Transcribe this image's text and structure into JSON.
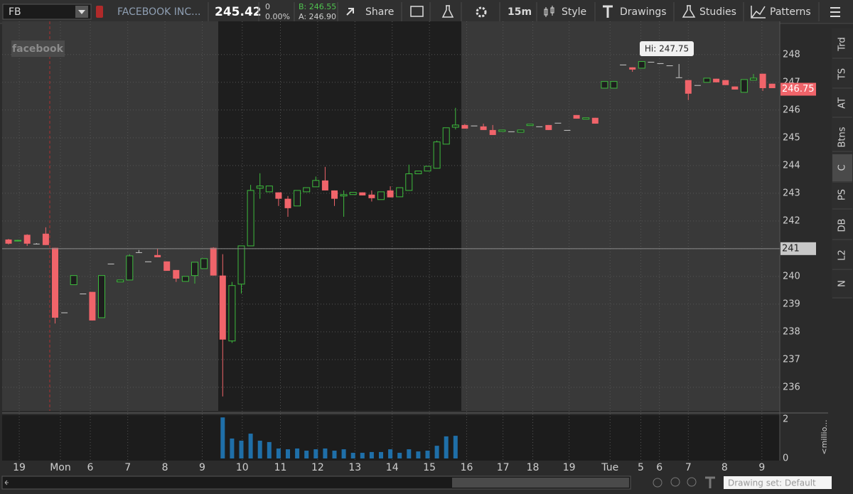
{
  "toolbar": {
    "symbol": "FB",
    "company": "FACEBOOK INC...",
    "last": "245.42",
    "change": "0",
    "change_pct": "0.00%",
    "bid": "B: 246.55",
    "ask": "A: 246.90",
    "share": "Share",
    "interval": "15m",
    "style": "Style",
    "drawings": "Drawings",
    "studies": "Studies",
    "patterns": "Patterns"
  },
  "sidebar": {
    "tabs": [
      "Trd",
      "TS",
      "AT",
      "Btns",
      "C",
      "PS",
      "DB",
      "L2",
      "N"
    ]
  },
  "footer": {
    "drawing_set": "Drawing set: Default"
  },
  "chart_data": {
    "type": "candlestick",
    "watermark": "facebook",
    "high_label": "Hi: 247.75",
    "open": [
      241.33,
      241.28,
      241.5,
      241.18,
      241.54,
      241.03,
      238.7,
      239.7,
      239.38,
      239.44,
      238.51,
      240.46,
      239.8,
      239.87,
      240.87,
      240.54,
      240.77,
      240.54,
      240.23,
      239.82,
      240.03,
      240.28,
      241.03,
      240.03,
      237.67,
      239.72,
      241.1,
      243.18,
      243.05,
      243.03,
      242.8,
      242.54,
      243.05,
      243.23,
      243.46,
      243.1,
      242.9,
      242.95,
      243.03,
      242.95,
      242.77,
      243.1,
      242.87,
      243.1,
      243.7,
      243.8,
      243.9,
      244.77,
      245.38,
      245.46,
      245.44,
      245.41,
      245.28,
      245.23,
      245.23,
      245.2,
      245.44,
      245.41,
      245.46,
      245.54,
      245.28,
      245.82,
      245.67,
      245.72,
      246.79,
      246.79,
      247.64,
      247.54,
      247.51,
      247.74,
      247.69,
      247.61,
      247.18,
      247.08,
      246.9,
      247.0,
      247.13,
      247.08,
      246.85,
      246.64,
      247.08,
      247.31,
      246.95
    ],
    "high": [
      241.35,
      241.32,
      241.52,
      241.2,
      241.77,
      241.03,
      238.7,
      240.03,
      239.38,
      239.44,
      240.03,
      240.46,
      239.87,
      240.8,
      240.95,
      240.54,
      241.0,
      240.54,
      240.23,
      240.0,
      240.51,
      240.64,
      241.05,
      240.8,
      239.8,
      241.1,
      243.3,
      243.72,
      243.26,
      243.03,
      242.9,
      243.1,
      243.2,
      243.6,
      243.95,
      243.1,
      243.1,
      243.03,
      243.03,
      243.1,
      243.05,
      243.25,
      243.2,
      244.03,
      243.8,
      243.97,
      244.9,
      245.36,
      246.08,
      245.5,
      245.44,
      245.51,
      245.46,
      245.28,
      245.23,
      245.28,
      245.49,
      245.41,
      245.46,
      245.54,
      245.28,
      245.82,
      245.72,
      245.72,
      247.03,
      247.03,
      247.64,
      247.54,
      247.75,
      247.74,
      247.69,
      247.61,
      247.66,
      247.08,
      246.9,
      247.15,
      247.13,
      247.08,
      246.85,
      247.1,
      247.3,
      247.31,
      246.95
    ],
    "low": [
      241.15,
      241.26,
      241.1,
      241.16,
      241.13,
      238.3,
      238.7,
      239.7,
      239.38,
      238.41,
      238.51,
      240.46,
      239.8,
      239.87,
      240.87,
      240.54,
      240.69,
      240.2,
      239.8,
      239.82,
      239.74,
      240.28,
      240.03,
      235.67,
      237.6,
      239.38,
      241.1,
      242.8,
      243.05,
      242.54,
      242.15,
      242.54,
      243.05,
      243.23,
      243.1,
      242.54,
      242.15,
      242.95,
      242.92,
      242.7,
      242.77,
      242.85,
      242.87,
      243.1,
      243.7,
      243.8,
      243.9,
      244.77,
      245.3,
      245.33,
      245.44,
      245.28,
      245.1,
      245.23,
      245.23,
      245.2,
      245.44,
      245.41,
      245.28,
      245.54,
      245.28,
      245.69,
      245.67,
      245.51,
      246.79,
      246.79,
      247.64,
      247.38,
      247.51,
      247.74,
      247.69,
      247.61,
      247.18,
      246.36,
      246.9,
      247.0,
      247.0,
      246.9,
      246.74,
      246.64,
      247.08,
      246.69,
      246.79
    ],
    "close": [
      241.18,
      241.3,
      241.18,
      241.18,
      241.13,
      238.51,
      238.7,
      240.03,
      239.38,
      238.41,
      240.03,
      240.46,
      239.87,
      240.74,
      240.87,
      240.54,
      240.69,
      240.2,
      239.92,
      240.0,
      240.51,
      240.64,
      240.03,
      237.72,
      239.67,
      241.1,
      243.1,
      243.26,
      243.26,
      242.8,
      242.46,
      243.1,
      243.2,
      243.46,
      243.1,
      242.8,
      242.95,
      243.03,
      242.92,
      242.82,
      243.05,
      242.85,
      243.2,
      243.7,
      243.8,
      243.97,
      244.85,
      245.36,
      245.46,
      245.33,
      245.44,
      245.28,
      245.1,
      245.28,
      245.23,
      245.28,
      245.49,
      245.41,
      245.28,
      245.54,
      245.28,
      245.69,
      245.72,
      245.51,
      247.03,
      247.03,
      247.64,
      247.46,
      247.75,
      247.74,
      247.69,
      247.61,
      247.18,
      246.59,
      246.9,
      247.15,
      247.0,
      246.9,
      246.74,
      247.1,
      247.15,
      246.79,
      246.79
    ],
    "up_color": "#3dbb3d",
    "down_color": "#f0646a",
    "flat_color": "#c8c8c8",
    "ylim": [
      235.15,
      249.2
    ],
    "yticks": [
      236,
      237,
      238,
      239,
      240,
      241,
      242,
      243,
      244,
      245,
      246,
      247,
      248
    ],
    "grid": true,
    "xticks": [
      {
        "value": 1.15,
        "label": "19"
      },
      {
        "value": 5.57,
        "label": "Mon"
      },
      {
        "value": 8.78,
        "label": "6"
      },
      {
        "value": 12.8,
        "label": "7"
      },
      {
        "value": 16.8,
        "label": "8"
      },
      {
        "value": 20.8,
        "label": "9"
      },
      {
        "value": 25.1,
        "label": "10"
      },
      {
        "value": 29.2,
        "label": "11"
      },
      {
        "value": 33.2,
        "label": "12"
      },
      {
        "value": 37.2,
        "label": "13"
      },
      {
        "value": 41.2,
        "label": "14"
      },
      {
        "value": 45.2,
        "label": "15"
      },
      {
        "value": 49.2,
        "label": "16"
      },
      {
        "value": 53.1,
        "label": "17"
      },
      {
        "value": 56.3,
        "label": "18"
      },
      {
        "value": 60.2,
        "label": "19"
      },
      {
        "value": 64.6,
        "label": "Tue"
      },
      {
        "value": 67.9,
        "label": "5"
      },
      {
        "value": 69.9,
        "label": "6"
      },
      {
        "value": 73.0,
        "label": "7"
      },
      {
        "value": 76.9,
        "label": "8"
      },
      {
        "value": 80.9,
        "label": "9"
      }
    ],
    "price_tags": [
      {
        "value": 246.75,
        "color": "#f0646a",
        "line": false
      },
      {
        "value": 241,
        "color": "#c8c8c8",
        "line": true
      }
    ],
    "volume": {
      "label": "<millio...",
      "color": "#1f6fa8",
      "ylim": [
        0,
        2
      ],
      "yticks": [
        0,
        2
      ],
      "values": [
        null,
        null,
        null,
        null,
        null,
        null,
        null,
        null,
        null,
        null,
        null,
        null,
        null,
        null,
        null,
        null,
        null,
        null,
        null,
        null,
        null,
        null,
        null,
        2.1,
        1.02,
        0.91,
        1.27,
        0.91,
        0.84,
        0.51,
        0.47,
        0.51,
        0.4,
        0.47,
        0.51,
        0.4,
        0.47,
        0.29,
        0.29,
        0.33,
        0.33,
        0.47,
        0.29,
        0.47,
        0.36,
        0.4,
        0.65,
        1.13,
        1.16,
        null,
        null,
        null,
        null,
        null,
        null,
        null,
        null,
        null,
        null,
        null,
        null,
        null,
        null,
        null,
        null,
        null,
        null,
        null,
        null,
        null,
        null,
        null,
        null,
        null,
        null,
        null,
        null,
        null,
        null,
        null,
        null,
        null,
        null
      ]
    }
  }
}
